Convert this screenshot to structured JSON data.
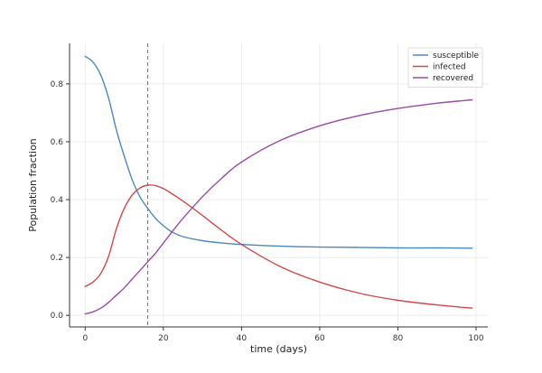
{
  "chart_data": {
    "type": "line",
    "xlabel": "time (days)",
    "ylabel": "Population fraction",
    "xlim": [
      -4,
      103
    ],
    "ylim": [
      -0.04,
      0.94
    ],
    "x_ticks": [
      0,
      20,
      40,
      60,
      80,
      100
    ],
    "y_ticks": [
      0.0,
      0.2,
      0.4,
      0.6,
      0.8
    ],
    "grid": true,
    "legend_position": "top-right",
    "vline": {
      "x": 16,
      "style": "dashed",
      "color": "#d04a4a"
    },
    "series": [
      {
        "name": "susceptible",
        "color": "#4a88c0",
        "points": [
          [
            0,
            0.895
          ],
          [
            2,
            0.875
          ],
          [
            4,
            0.83
          ],
          [
            6,
            0.75
          ],
          [
            8,
            0.64
          ],
          [
            10,
            0.55
          ],
          [
            12,
            0.47
          ],
          [
            14,
            0.41
          ],
          [
            16,
            0.37
          ],
          [
            18,
            0.335
          ],
          [
            20,
            0.31
          ],
          [
            22,
            0.29
          ],
          [
            25,
            0.272
          ],
          [
            30,
            0.258
          ],
          [
            35,
            0.25
          ],
          [
            40,
            0.245
          ],
          [
            50,
            0.239
          ],
          [
            60,
            0.236
          ],
          [
            70,
            0.235
          ],
          [
            80,
            0.233
          ],
          [
            90,
            0.233
          ],
          [
            99,
            0.232
          ]
        ]
      },
      {
        "name": "infected",
        "color": "#d04a4a",
        "points": [
          [
            0,
            0.1
          ],
          [
            2,
            0.115
          ],
          [
            4,
            0.145
          ],
          [
            6,
            0.205
          ],
          [
            8,
            0.3
          ],
          [
            10,
            0.37
          ],
          [
            12,
            0.415
          ],
          [
            14,
            0.44
          ],
          [
            16,
            0.45
          ],
          [
            18,
            0.448
          ],
          [
            20,
            0.438
          ],
          [
            22,
            0.422
          ],
          [
            25,
            0.395
          ],
          [
            30,
            0.345
          ],
          [
            35,
            0.293
          ],
          [
            40,
            0.245
          ],
          [
            50,
            0.168
          ],
          [
            60,
            0.115
          ],
          [
            70,
            0.077
          ],
          [
            80,
            0.052
          ],
          [
            90,
            0.036
          ],
          [
            99,
            0.025
          ]
        ]
      },
      {
        "name": "recovered",
        "color": "#9a4aa8",
        "points": [
          [
            0,
            0.005
          ],
          [
            2,
            0.012
          ],
          [
            4,
            0.025
          ],
          [
            6,
            0.045
          ],
          [
            8,
            0.07
          ],
          [
            10,
            0.095
          ],
          [
            12,
            0.125
          ],
          [
            14,
            0.155
          ],
          [
            16,
            0.185
          ],
          [
            18,
            0.215
          ],
          [
            20,
            0.25
          ],
          [
            22,
            0.285
          ],
          [
            25,
            0.335
          ],
          [
            30,
            0.41
          ],
          [
            35,
            0.475
          ],
          [
            40,
            0.53
          ],
          [
            50,
            0.605
          ],
          [
            60,
            0.655
          ],
          [
            70,
            0.69
          ],
          [
            80,
            0.715
          ],
          [
            90,
            0.733
          ],
          [
            99,
            0.745
          ]
        ]
      }
    ]
  }
}
